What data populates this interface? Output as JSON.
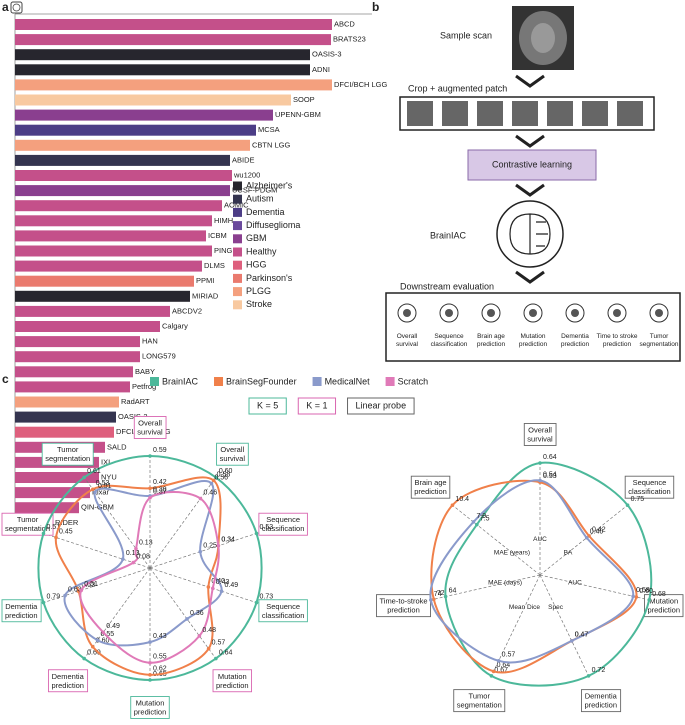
{
  "panel_labels": [
    "a",
    "b",
    "c"
  ],
  "chart_data": [
    {
      "type": "bar",
      "categories": [
        "ABCD",
        "BRATS23",
        "OASIS-3",
        "ADNI",
        "DFCI/BCH LGG",
        "SOOP",
        "UPENN-GBM",
        "MCSA",
        "CBTN LGG",
        "ABIDE",
        "wu1200",
        "UCSF-PDGM",
        "AOMIC",
        "HIMH",
        "ICBM",
        "PING",
        "DLMS",
        "PPMI",
        "MIRIAD",
        "ABCDV2",
        "Calgary",
        "HAN",
        "LONG579",
        "BABY",
        "Petfrog",
        "RadART",
        "OASIS-2",
        "DFCI/BCH HGG",
        "SALD",
        "IXI",
        "NYU",
        "Pixar",
        "QIN-GBM",
        "RIDER"
      ],
      "values": [
        317,
        316,
        295,
        295,
        317,
        276,
        258,
        241,
        235,
        215,
        217,
        215,
        207,
        197,
        191,
        197,
        187,
        179,
        175,
        155,
        145,
        125,
        125,
        118,
        115,
        104,
        101,
        99,
        90,
        84,
        84,
        75,
        64,
        38
      ],
      "colors": [
        "#c4508a",
        "#c4508a",
        "#27262e",
        "#27262e",
        "#f4a07e",
        "#f8c9a0",
        "#8a3f8f",
        "#4c3d86",
        "#f4a07e",
        "#34344f",
        "#c4508a",
        "#8a3f8f",
        "#c4508a",
        "#c4508a",
        "#c4508a",
        "#c4508a",
        "#c4508a",
        "#ea7a6e",
        "#27262e",
        "#c4508a",
        "#c4508a",
        "#c4508a",
        "#c4508a",
        "#c4508a",
        "#c4508a",
        "#f4a07e",
        "#34344f",
        "#de5f7d",
        "#c4508a",
        "#c4508a",
        "#c4508a",
        "#c4508a",
        "#c4508a",
        "#8a3f8f"
      ],
      "legend": [
        {
          "name": "Alzheimer's",
          "color": "#27262e"
        },
        {
          "name": "Autism",
          "color": "#34344f"
        },
        {
          "name": "Dementia",
          "color": "#4c3d86"
        },
        {
          "name": "Diffuseglioma",
          "color": "#6a4a9c"
        },
        {
          "name": "GBM",
          "color": "#8a3f8f"
        },
        {
          "name": "Healthy",
          "color": "#c4508a"
        },
        {
          "name": "HGG",
          "color": "#de5f7d"
        },
        {
          "name": "Parkinson's",
          "color": "#ea7a6e"
        },
        {
          "name": "PLGG",
          "color": "#f4a07e"
        },
        {
          "name": "Stroke",
          "color": "#f8c9a0"
        }
      ]
    },
    {
      "type": "radar",
      "modes": [
        {
          "label": "K = 5",
          "color": "#4cb89a"
        },
        {
          "label": "K = 1",
          "color": "#d965b0"
        },
        {
          "label": "Linear probe",
          "color": "#666666"
        }
      ],
      "axes": [
        {
          "label": "Overall survival",
          "border": "#d965b0"
        },
        {
          "label": "Overall survival",
          "border": "#4cb89a"
        },
        {
          "label": "Sequence classification",
          "border": "#d965b0"
        },
        {
          "label": "Sequence classification",
          "border": "#4cb89a"
        },
        {
          "label": "Mutation prediction",
          "border": "#d965b0"
        },
        {
          "label": "Mutation prediction",
          "border": "#4cb89a"
        },
        {
          "label": "Dementia prediction",
          "border": "#d965b0"
        },
        {
          "label": "Dementia prediction",
          "border": "#4cb89a"
        },
        {
          "label": "Tumor segmentation",
          "border": "#d965b0"
        },
        {
          "label": "Tumor segmentation",
          "border": "#4cb89a"
        }
      ],
      "series": [
        {
          "name": "BrainIAC",
          "color": "#4cb89a",
          "values": [
            0.59,
            0.6,
            0.53,
            0.73,
            0.64,
            0.65,
            0.69,
            0.79,
            0.51,
            0.61
          ],
          "value_labels": [
            "0.59",
            "0.60",
            "0.53",
            "0.73",
            "0.64",
            "0.65",
            "0.69",
            "0.79",
            "0.51",
            "0.61"
          ]
        },
        {
          "name": "BrainSegFounder",
          "color": "#f0804a",
          "values": [
            0.42,
            0.58,
            0.34,
            0.4,
            0.57,
            0.62,
            0.6,
            0.53,
            0.45,
            0.53
          ],
          "value_labels": [
            "0.42",
            "0.58",
            "0.34",
            "0.40",
            "0.57",
            "0.62",
            "0.60",
            "0.53",
            "0.45",
            "0.53"
          ]
        },
        {
          "name": "MedicalNet",
          "color": "#8a9acb",
          "values": [
            0.38,
            0.56,
            0.25,
            0.49,
            0.36,
            0.43,
            0.55,
            0.63,
            0.13,
            0.51
          ],
          "value_labels": [
            "0.38",
            "0.56",
            "0.25",
            "0.49",
            "0.36",
            "0.43",
            "0.55",
            "0.63",
            "0.13",
            "0.51"
          ]
        },
        {
          "name": "Scratch",
          "color": "#e07ab8",
          "values": [
            0.37,
            0.46,
            0.34,
            0.43,
            0.48,
            0.55,
            0.49,
            0.51,
            0.08,
            0.13
          ],
          "value_labels": [
            "0.37",
            "0.46",
            "0.34",
            "0.43",
            "0.48",
            "0.55",
            "0.49",
            "0.51",
            "0.08",
            "0.13"
          ]
        }
      ]
    },
    {
      "type": "radar",
      "axes": [
        {
          "label": "Overall survival",
          "border": "#666666"
        },
        {
          "label": "Sequence classification",
          "border": "#666666"
        },
        {
          "label": "Mutation prediction",
          "border": "#666666"
        },
        {
          "label": "Dementia prediction",
          "border": "#666666"
        },
        {
          "label": "Tumor segmentation",
          "border": "#666666"
        },
        {
          "label": "Time-to-stroke prediction",
          "border": "#666666"
        },
        {
          "label": "Brain age prediction",
          "border": "#666666"
        }
      ],
      "metrics": [
        "AUC",
        "BA",
        "AUC",
        "Spec",
        "Mean Dice",
        "MAE (days)",
        "MAE (years)"
      ],
      "series": [
        {
          "color": "#4cb89a",
          "values": [
            0.64,
            0.75,
            0.68,
            0.72,
            0.67,
            64,
            7.5
          ],
          "value_labels": [
            "0.64",
            "0.75",
            "0.68",
            "0.72",
            "0.67",
            "64",
            "7.5"
          ]
        },
        {
          "color": "#f0804a",
          "values": [
            0.53,
            0.42,
            0.6,
            0.47,
            0.64,
            72,
            10.4
          ],
          "value_labels": [
            "0.53",
            "0.42",
            "0.60",
            "0.47",
            "0.64",
            "72",
            "10.4"
          ]
        },
        {
          "color": "#8a9acb",
          "values": [
            0.54,
            0.4,
            0.58,
            0.47,
            0.57,
            74,
            7.9
          ],
          "value_labels": [
            "0.54",
            "0.40",
            "0.58",
            "0.47",
            "0.57",
            "74",
            "7.9"
          ]
        }
      ]
    }
  ],
  "diagram": {
    "sample_scan": "Sample scan",
    "crop": "Crop + augmented patch",
    "contrastive": "Contrastive learning",
    "model": "BrainIAC",
    "downstream": "Downstream evaluation",
    "tasks": [
      "Overall survival",
      "Sequence classification",
      "Brain age prediction",
      "Mutation prediction",
      "Dementia prediction",
      "Time to stroke prediction",
      "Tumor segmentation"
    ]
  }
}
